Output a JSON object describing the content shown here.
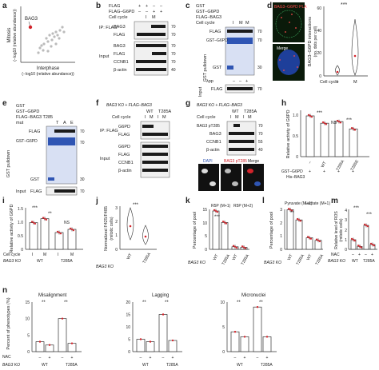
{
  "panels": {
    "a": {
      "letter": "a",
      "xlabel": "Interphase",
      "xlabel2": "(−log10 (relative abundance))",
      "ylabel": "Mitosis",
      "ylabel2": "(−log10 (relative abundance))",
      "highlight": "BAG3"
    },
    "b": {
      "letter": "b",
      "rows": [
        "FLAG",
        "FLAG–G6PD"
      ],
      "cellcycle": "Cell cycle",
      "cc": [
        "I",
        "M"
      ],
      "ip": "IP:\nFLAG",
      "ip_bands": [
        "BAG3",
        "FLAG"
      ],
      "input": "Input",
      "input_bands": [
        "BAG3",
        "FLAG",
        "CCNB1",
        "β-actin"
      ],
      "mw_ip": [
        "70",
        "70"
      ],
      "mw_in": [
        "70",
        "70",
        "70",
        "40"
      ]
    },
    "c": {
      "letter": "c",
      "rows": [
        "GST",
        "GST–G6PD",
        "FLAG–BAG3"
      ],
      "cellcycle": "Cell cycle",
      "cc": [
        "I",
        "M"
      ],
      "group": "GST pulldown",
      "bands": [
        "FLAG",
        "GST–G6PD",
        "GST"
      ],
      "lpp": "λpp",
      "input": "Input",
      "input_band": "FLAG",
      "mw": [
        "70",
        "70",
        "30",
        "70"
      ]
    },
    "d": {
      "letter": "d",
      "title": "BAG3–G6PD PLA",
      "merge": "Merge",
      "ylabel": "BAG3–G6PD interactions",
      "ylabel2": "(no. dots per cell)",
      "cellcycle": "Cell cycle",
      "cc": [
        "I",
        "M"
      ],
      "sig": "***",
      "yticks": [
        "0",
        "20",
        "40",
        "60"
      ]
    },
    "e": {
      "letter": "e",
      "rows": [
        "GST",
        "GST–G6PD",
        "FLAG–BAG3 T285"
      ],
      "mut": "mut",
      "muts": [
        "T",
        "A",
        "E"
      ],
      "group": "GST pulldown",
      "bands": [
        "FLAG",
        "GST–G6PD",
        "GST"
      ],
      "input": "Input",
      "input_band": "FLAG",
      "mw": [
        "70",
        "70",
        "30",
        "70"
      ]
    },
    "f": {
      "letter": "f",
      "genotype": "BAG3 KO + FLAG–BAG3",
      "variants": [
        "WT",
        "T285A"
      ],
      "cellcycle": "Cell cycle",
      "ip": "IP:\nFLAG",
      "ip_bands": [
        "G6PD",
        "FLAG"
      ],
      "input": "Input",
      "input_bands": [
        "G6PD",
        "FLAG",
        "CCNB1",
        "β-actin"
      ]
    },
    "g": {
      "letter": "g",
      "genotype": "BAG3 KO + FLAG–BAG3",
      "variants": [
        "WT",
        "T285A"
      ],
      "cellcycle": "Cell cycle",
      "bands": [
        "BAG3 pT285",
        "BAG3",
        "CCNB1",
        "β-actin"
      ],
      "mw": [
        "70",
        "70",
        "55",
        "40"
      ],
      "img_labels": [
        "DAPI",
        "BAG3 pT285",
        "Merge"
      ]
    },
    "h": {
      "letter": "h",
      "ylabel": "Relative activity of G6PD",
      "rowlabels": [
        "GST–G6PD",
        "His–BAG3"
      ],
      "cats": [
        "–",
        "WT",
        "T285A",
        "T285E"
      ],
      "values": [
        1.0,
        0.82,
        0.86,
        0.68
      ],
      "sig": [
        "***",
        "NS",
        "***"
      ],
      "yticks": [
        "0",
        "0.5",
        "1.0"
      ]
    },
    "i": {
      "letter": "i",
      "ylabel": "Relative activity of G6PD",
      "cellcycle": "Cell cycle",
      "cc": [
        "I",
        "M",
        "I",
        "M"
      ],
      "geno": [
        "WT",
        "T285A"
      ],
      "ko": "BAG3 KO",
      "values": [
        1.0,
        1.15,
        0.63,
        0.75
      ],
      "sig": [
        "***",
        "**",
        "NS"
      ],
      "yticks": [
        "0",
        "0.5",
        "1.0",
        "1.5"
      ]
    },
    "j": {
      "letter": "j",
      "ylabel": "Normalized F425/F485",
      "ylabel2": "(mitotic cells)",
      "cats": [
        "WT",
        "T285A"
      ],
      "ko": "BAG3 KO",
      "sig": "***",
      "yticks": [
        "0",
        "1",
        "2",
        "3"
      ]
    },
    "k": {
      "letter": "k",
      "ylabel": "Percentage of pool",
      "groups": [
        "R5P (M+1)",
        "R5P (M+2)"
      ],
      "cats": [
        "WT",
        "T285A",
        "WT",
        "T285A"
      ],
      "ko": "BAG3 KO",
      "values": [
        15,
        10.5,
        1.0,
        0.8
      ],
      "sig": "***",
      "yticks": [
        "0",
        "5",
        "10",
        "15"
      ]
    },
    "l": {
      "letter": "l",
      "ylabel": "Percentage of pool",
      "groups": [
        "Pyruvate (M+1)",
        "Lactate (M+1)"
      ],
      "cats": [
        "WT",
        "T285A",
        "WT",
        "T285A"
      ],
      "ko": "BAG3 KO",
      "values": [
        3.1,
        2.3,
        0.9,
        0.7
      ],
      "sig": "**",
      "yticks": [
        "0",
        "1",
        "2",
        "3"
      ]
    },
    "m": {
      "letter": "m",
      "ylabel": "Relative level of ROS",
      "ylabel2": "(mitotic cells)",
      "nac": "NAC",
      "nacs": [
        "–",
        "+",
        "–",
        "+"
      ],
      "geno": [
        "WT",
        "T285A"
      ],
      "ko": "BAG3 KO",
      "values": [
        1.0,
        0.3,
        2.5,
        0.5
      ],
      "sig": [
        "***",
        "***"
      ],
      "yticks": [
        "0",
        "1",
        "2",
        "3",
        "4"
      ]
    },
    "n": {
      "letter": "n",
      "ylabel": "Percent of phenotypes (%)",
      "nac": "NAC",
      "ko": "BAG3 KO",
      "geno": [
        "WT",
        "T285A"
      ],
      "nacs": [
        "–",
        "+",
        "–",
        "+"
      ],
      "charts": [
        {
          "title": "Misalignment",
          "values": [
            3,
            2,
            10,
            2.5
          ],
          "yticks": [
            "0",
            "5",
            "10",
            "15"
          ]
        },
        {
          "title": "Lagging",
          "values": [
            5,
            4,
            15,
            4.5
          ],
          "yticks": [
            "0",
            "5",
            "10",
            "15",
            "20"
          ]
        },
        {
          "title": "Micronuclei",
          "values": [
            4,
            3,
            9,
            3
          ],
          "yticks": [
            "0",
            "5",
            "10"
          ]
        }
      ],
      "sig": [
        "**",
        "**"
      ]
    }
  },
  "chart_data": [
    {
      "type": "scatter",
      "title": "",
      "xlabel": "Interphase (−log10 (relative abundance))",
      "ylabel": "Mitosis (−log10 (relative abundance))",
      "highlight": "BAG3"
    },
    {
      "type": "bar",
      "panel": "h",
      "categories": [
        "–",
        "WT",
        "T285A",
        "T285E"
      ],
      "values": [
        1.0,
        0.82,
        0.86,
        0.68
      ],
      "ylabel": "Relative activity of G6PD",
      "ylim": [
        0,
        1.0
      ]
    },
    {
      "type": "bar",
      "panel": "i",
      "categories": [
        "WT I",
        "WT M",
        "T285A I",
        "T285A M"
      ],
      "values": [
        1.0,
        1.15,
        0.63,
        0.75
      ],
      "ylabel": "Relative activity of G6PD",
      "ylim": [
        0,
        1.5
      ]
    },
    {
      "type": "bar",
      "panel": "k",
      "categories": [
        "R5P (M+1) WT",
        "R5P (M+1) T285A",
        "R5P (M+2) WT",
        "R5P (M+2) T285A"
      ],
      "values": [
        15,
        10.5,
        1.0,
        0.8
      ],
      "ylabel": "Percentage of pool",
      "ylim": [
        0,
        15
      ]
    },
    {
      "type": "bar",
      "panel": "l",
      "categories": [
        "Pyruvate (M+1) WT",
        "Pyruvate (M+1) T285A",
        "Lactate (M+1) WT",
        "Lactate (M+1) T285A"
      ],
      "values": [
        3.1,
        2.3,
        0.9,
        0.7
      ],
      "ylabel": "Percentage of pool",
      "ylim": [
        0,
        3
      ]
    },
    {
      "type": "bar",
      "panel": "m",
      "categories": [
        "WT –",
        "WT +",
        "T285A –",
        "T285A +"
      ],
      "values": [
        1.0,
        0.3,
        2.5,
        0.5
      ],
      "ylabel": "Relative level of ROS (mitotic cells)",
      "ylim": [
        0,
        4
      ]
    },
    {
      "type": "bar",
      "panel": "n-Misalignment",
      "categories": [
        "WT –",
        "WT +",
        "T285A –",
        "T285A +"
      ],
      "values": [
        3,
        2,
        10,
        2.5
      ],
      "ylim": [
        0,
        15
      ]
    },
    {
      "type": "bar",
      "panel": "n-Lagging",
      "categories": [
        "WT –",
        "WT +",
        "T285A –",
        "T285A +"
      ],
      "values": [
        5,
        4,
        15,
        4.5
      ],
      "ylim": [
        0,
        20
      ]
    },
    {
      "type": "bar",
      "panel": "n-Micronuclei",
      "categories": [
        "WT –",
        "WT +",
        "T285A –",
        "T285A +"
      ],
      "values": [
        4,
        3,
        9,
        3
      ],
      "ylim": [
        0,
        10
      ]
    }
  ],
  "colors": {
    "accent": "#d3242b",
    "band": "#1b1b1b",
    "coomassie": "#2f55b3",
    "pla_bg": "#0a1a0a"
  }
}
